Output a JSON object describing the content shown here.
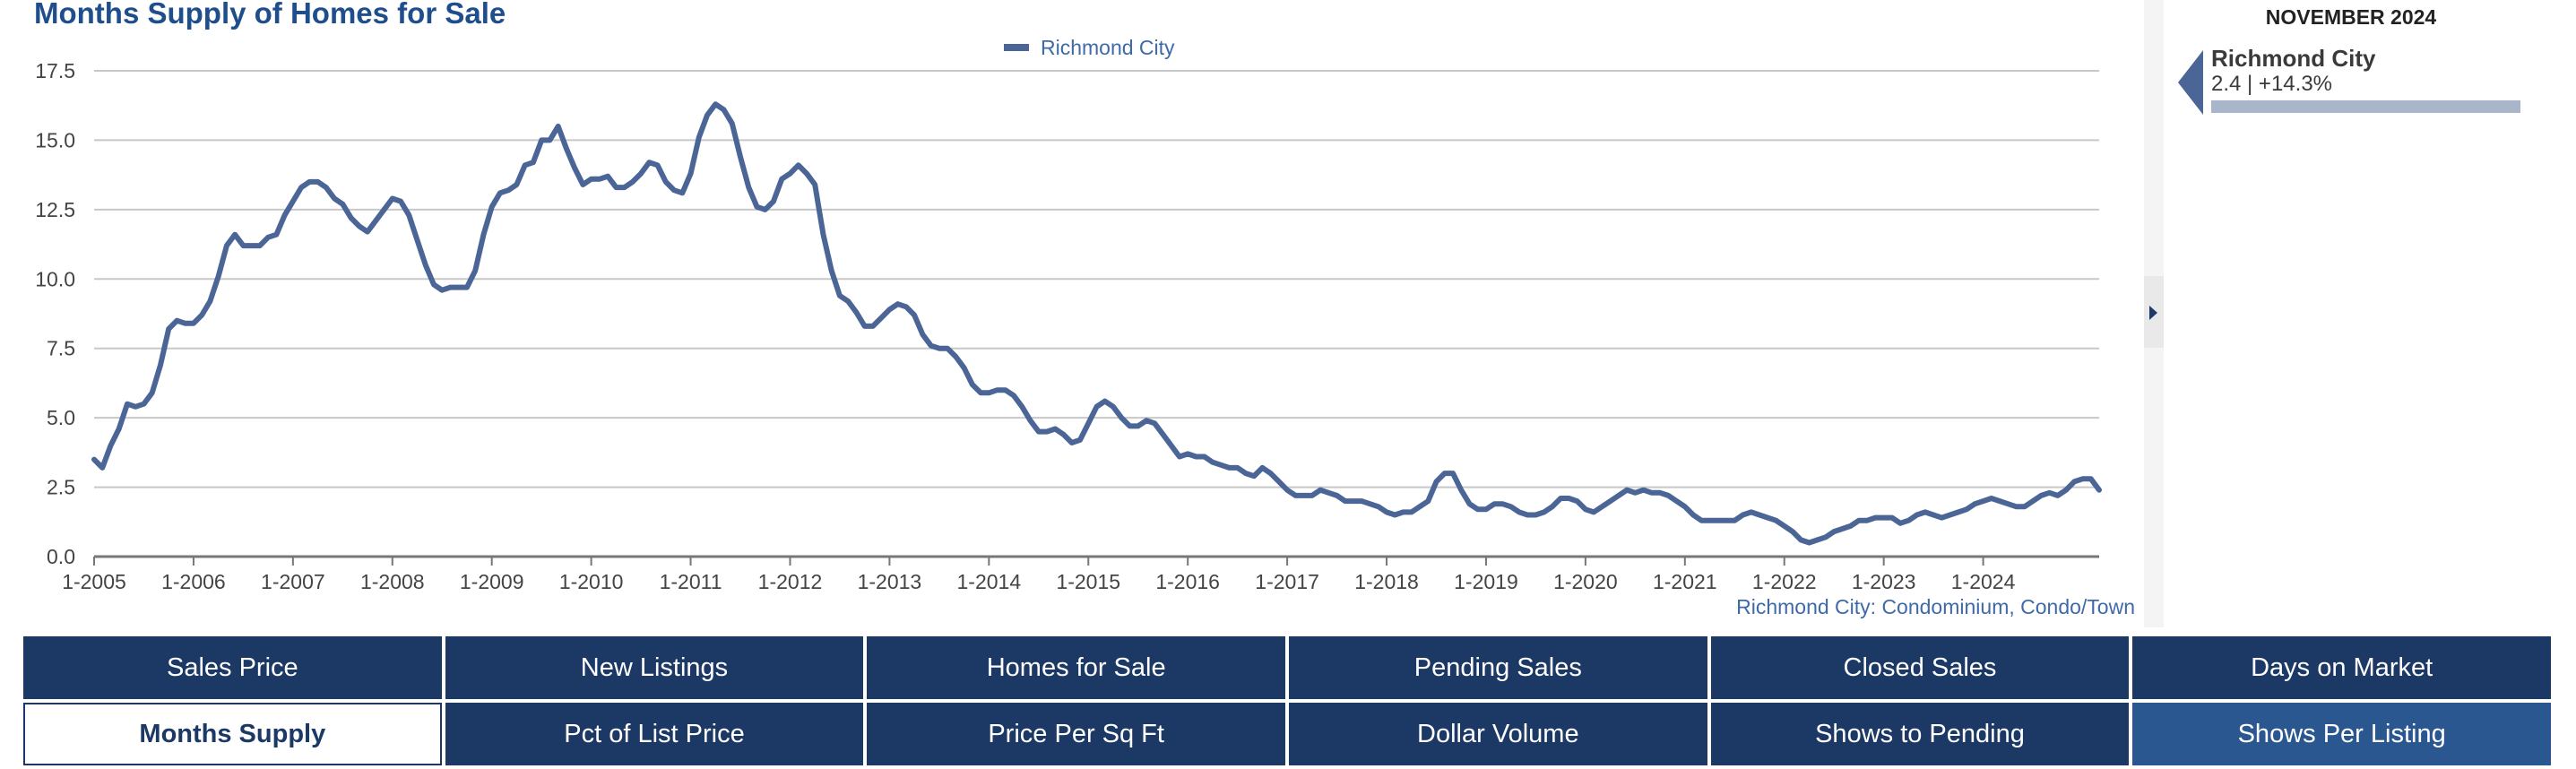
{
  "chart_title": "Months Supply of Homes for Sale",
  "chart_data": {
    "type": "line",
    "title": "Months Supply of Homes for Sale",
    "xlabel": "",
    "ylabel": "",
    "ylim": [
      0,
      17.5
    ],
    "yticks": [
      "0.0",
      "2.5",
      "5.0",
      "7.5",
      "10.0",
      "12.5",
      "15.0",
      "17.5"
    ],
    "xticks": [
      "1-2005",
      "1-2006",
      "1-2007",
      "1-2008",
      "1-2009",
      "1-2010",
      "1-2011",
      "1-2012",
      "1-2013",
      "1-2014",
      "1-2015",
      "1-2016",
      "1-2017",
      "1-2018",
      "1-2019",
      "1-2020",
      "1-2021",
      "1-2022",
      "1-2023",
      "1-2024"
    ],
    "legend": "top-center",
    "x_start": "1-2005",
    "series": [
      {
        "name": "Richmond City",
        "color": "#4a6596",
        "values": [
          3.5,
          3.2,
          4.0,
          4.6,
          5.5,
          5.4,
          5.5,
          5.9,
          6.9,
          8.2,
          8.5,
          8.4,
          8.4,
          8.7,
          9.2,
          10.1,
          11.2,
          11.6,
          11.2,
          11.2,
          11.2,
          11.5,
          11.6,
          12.3,
          12.8,
          13.3,
          13.5,
          13.5,
          13.3,
          12.9,
          12.7,
          12.2,
          11.9,
          11.7,
          12.1,
          12.5,
          12.9,
          12.8,
          12.3,
          11.4,
          10.5,
          9.8,
          9.6,
          9.7,
          9.7,
          9.7,
          10.3,
          11.6,
          12.6,
          13.1,
          13.2,
          13.4,
          14.1,
          14.2,
          15.0,
          15.0,
          15.5,
          14.7,
          14.0,
          13.4,
          13.6,
          13.6,
          13.7,
          13.3,
          13.3,
          13.5,
          13.8,
          14.2,
          14.1,
          13.5,
          13.2,
          13.1,
          13.8,
          15.1,
          15.9,
          16.3,
          16.1,
          15.6,
          14.4,
          13.3,
          12.6,
          12.5,
          12.8,
          13.6,
          13.8,
          14.1,
          13.8,
          13.4,
          11.6,
          10.3,
          9.4,
          9.2,
          8.8,
          8.3,
          8.3,
          8.6,
          8.9,
          9.1,
          9.0,
          8.7,
          8.0,
          7.6,
          7.5,
          7.5,
          7.2,
          6.8,
          6.2,
          5.9,
          5.9,
          6.0,
          6.0,
          5.8,
          5.4,
          4.9,
          4.5,
          4.5,
          4.6,
          4.4,
          4.1,
          4.2,
          4.8,
          5.4,
          5.6,
          5.4,
          5.0,
          4.7,
          4.7,
          4.9,
          4.8,
          4.4,
          4.0,
          3.6,
          3.7,
          3.6,
          3.6,
          3.4,
          3.3,
          3.2,
          3.2,
          3.0,
          2.9,
          3.2,
          3.0,
          2.7,
          2.4,
          2.2,
          2.2,
          2.2,
          2.4,
          2.3,
          2.2,
          2.0,
          2.0,
          2.0,
          1.9,
          1.8,
          1.6,
          1.5,
          1.6,
          1.6,
          1.8,
          2.0,
          2.7,
          3.0,
          3.0,
          2.4,
          1.9,
          1.7,
          1.7,
          1.9,
          1.9,
          1.8,
          1.6,
          1.5,
          1.5,
          1.6,
          1.8,
          2.1,
          2.1,
          2.0,
          1.7,
          1.6,
          1.8,
          2.0,
          2.2,
          2.4,
          2.3,
          2.4,
          2.3,
          2.3,
          2.2,
          2.0,
          1.8,
          1.5,
          1.3,
          1.3,
          1.3,
          1.3,
          1.3,
          1.5,
          1.6,
          1.5,
          1.4,
          1.3,
          1.1,
          0.9,
          0.6,
          0.5,
          0.6,
          0.7,
          0.9,
          1.0,
          1.1,
          1.3,
          1.3,
          1.4,
          1.4,
          1.4,
          1.2,
          1.3,
          1.5,
          1.6,
          1.5,
          1.4,
          1.5,
          1.6,
          1.7,
          1.9,
          2.0,
          2.1,
          2.0,
          1.9,
          1.8,
          1.8,
          2.0,
          2.2,
          2.3,
          2.2,
          2.4,
          2.7,
          2.8,
          2.8,
          2.4
        ]
      }
    ]
  },
  "legend_label": "Richmond City",
  "side_panel": {
    "date": "NOVEMBER 2024",
    "name": "Richmond City",
    "value": "2.4 | +14.3%"
  },
  "source_note": "Richmond City: Condominium, Condo/Town",
  "buttons": [
    {
      "label": "Sales Price",
      "state": "normal"
    },
    {
      "label": "New Listings",
      "state": "normal"
    },
    {
      "label": "Homes for Sale",
      "state": "normal"
    },
    {
      "label": "Pending Sales",
      "state": "normal"
    },
    {
      "label": "Closed Sales",
      "state": "normal"
    },
    {
      "label": "Days on Market",
      "state": "normal"
    },
    {
      "label": "Months Supply",
      "state": "active"
    },
    {
      "label": "Pct of List Price",
      "state": "normal"
    },
    {
      "label": "Price Per Sq Ft",
      "state": "normal"
    },
    {
      "label": "Dollar Volume",
      "state": "normal"
    },
    {
      "label": "Shows to Pending",
      "state": "normal"
    },
    {
      "label": "Shows Per Listing",
      "state": "highlight"
    }
  ]
}
